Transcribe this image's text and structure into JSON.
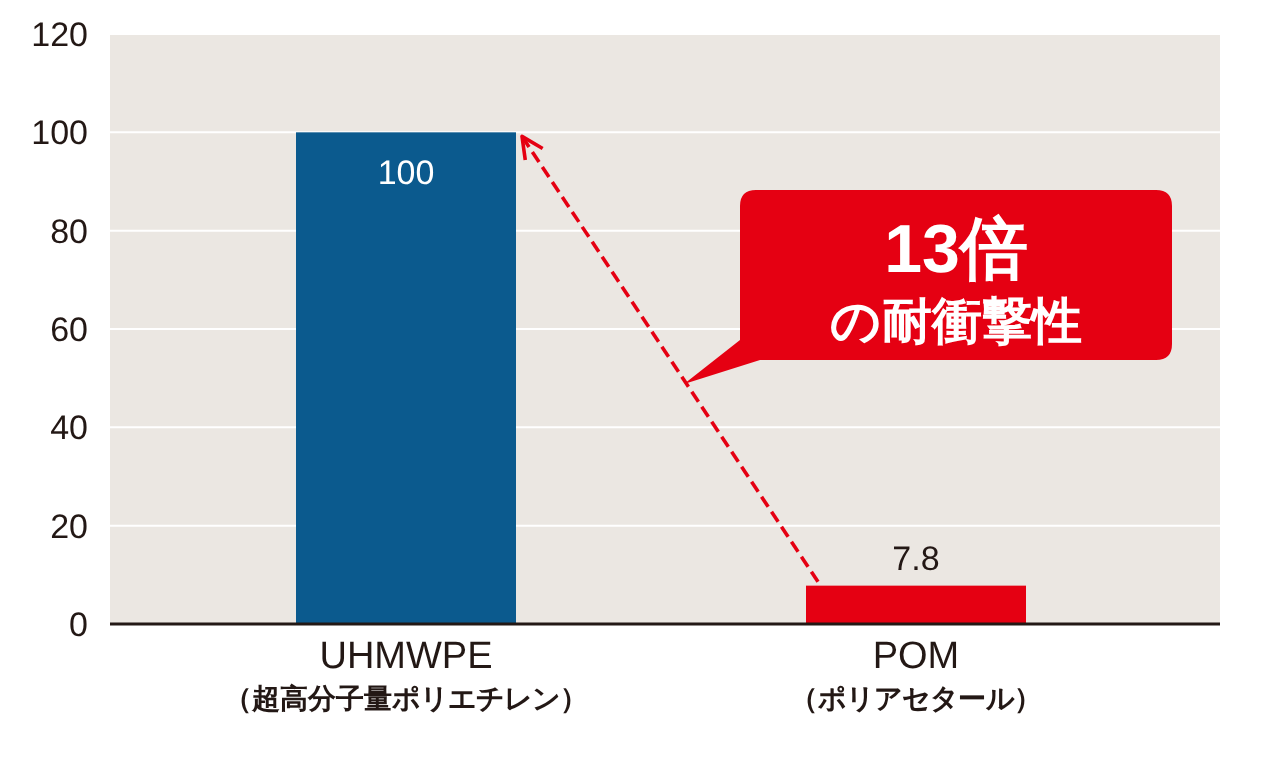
{
  "chart_data": {
    "type": "bar",
    "categories": [
      "UHMWPE\n（超高分子量ポリエチレン）",
      "POM\n（ポリアセタール）"
    ],
    "values": [
      100,
      7.8
    ],
    "colors": [
      "#0b5a8e",
      "#e50012"
    ],
    "data_labels": true,
    "ylim": [
      0,
      120
    ],
    "yticks": [
      0,
      20,
      40,
      60,
      80,
      100,
      120
    ],
    "grid": "y",
    "annotations": [
      "13倍",
      "の耐衝撃性"
    ]
  }
}
